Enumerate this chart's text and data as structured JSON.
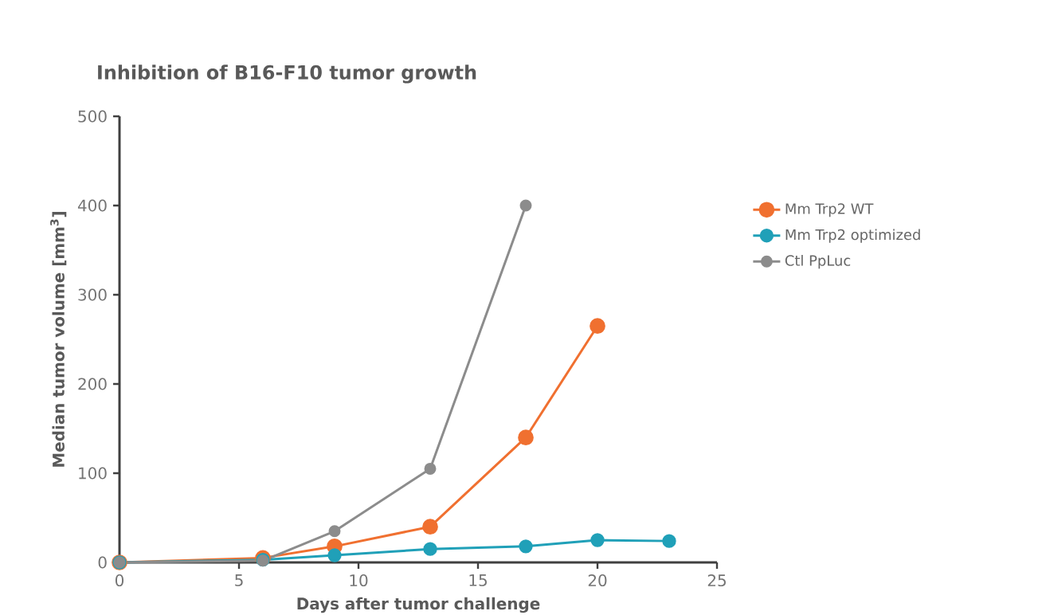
{
  "chart_data": {
    "type": "line",
    "title": "Inhibition of B16-F10 tumor growth",
    "xlabel": "Days after tumor challenge",
    "ylabel": "Median tumor volume [mm$^{3}$]",
    "xlim": [
      0,
      25
    ],
    "xticks": [
      0,
      5,
      10,
      15,
      20,
      25
    ],
    "ylim": [
      0,
      500
    ],
    "yticks": [
      0,
      100,
      200,
      300,
      400,
      500
    ],
    "marker": "circle",
    "legend": "right",
    "grid": false,
    "series": [
      {
        "name": "Mm Trp2 WT",
        "color": "#f07030",
        "x": [
          0,
          6,
          9,
          13,
          17,
          20
        ],
        "values": [
          0,
          5,
          18,
          40,
          140,
          265
        ]
      },
      {
        "name": "Mm Trp2 optimized",
        "color": "#20a0b8",
        "x": [
          0,
          6,
          9,
          13,
          17,
          20,
          23
        ],
        "values": [
          0,
          3,
          8,
          15,
          18,
          25,
          24
        ]
      },
      {
        "name": "Ctl PpLuc",
        "color": "#8c8c8c",
        "x": [
          0,
          6,
          9,
          13,
          17
        ],
        "values": [
          0,
          2,
          35,
          105,
          400
        ]
      }
    ]
  }
}
